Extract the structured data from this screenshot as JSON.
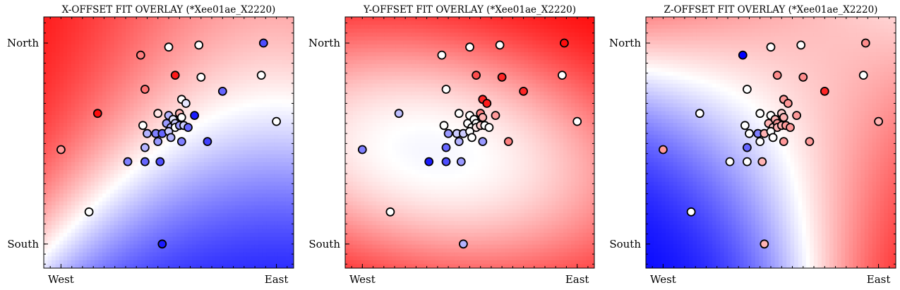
{
  "figure": {
    "panels": [
      {
        "title": "X-OFFSET FIT OVERLAY (*Xee01ae_X2220)"
      },
      {
        "title": "Y-OFFSET FIT OVERLAY (*Xee01ae_X2220)"
      },
      {
        "title": "Z-OFFSET FIT OVERLAY (*Xee01ae_X2220)"
      }
    ]
  },
  "colors": {
    "low": "#0000ff",
    "mid": "#ffffff",
    "high": "#ff0000",
    "marker_edge": "#000000"
  },
  "chart_data": [
    {
      "type": "scatter",
      "title": "X-OFFSET FIT OVERLAY (*Xee01ae_X2220)",
      "x_ticks": [
        {
          "value": 0,
          "label": "West"
        },
        {
          "value": 1,
          "label": "East"
        }
      ],
      "y_ticks": [
        {
          "value": 0,
          "label": "South"
        },
        {
          "value": 1,
          "label": "North"
        }
      ],
      "xlim": [
        -0.08,
        1.08
      ],
      "ylim": [
        -0.12,
        1.13
      ],
      "colormap": "bwr",
      "grid": false,
      "background_field": {
        "a": -0.9,
        "b": 1.2,
        "c": 0.0,
        "d": 0.9,
        "e": -0.5,
        "cx": 0.5,
        "cy": 0.5
      },
      "points": [
        {
          "x": 0.0,
          "y": 0.47,
          "v": 0.4
        },
        {
          "x": 0.17,
          "y": 0.65,
          "v": 0.95
        },
        {
          "x": 0.13,
          "y": 0.16,
          "v": 0.0
        },
        {
          "x": 0.37,
          "y": 0.94,
          "v": 0.5
        },
        {
          "x": 0.5,
          "y": 0.98,
          "v": 0.0
        },
        {
          "x": 0.64,
          "y": 0.99,
          "v": 0.0
        },
        {
          "x": 0.94,
          "y": 1.0,
          "v": -0.7
        },
        {
          "x": 0.53,
          "y": 0.84,
          "v": 0.9
        },
        {
          "x": 0.65,
          "y": 0.83,
          "v": 0.0
        },
        {
          "x": 0.93,
          "y": 0.84,
          "v": 0.0
        },
        {
          "x": 0.39,
          "y": 0.77,
          "v": 0.55
        },
        {
          "x": 0.75,
          "y": 0.76,
          "v": -0.6
        },
        {
          "x": 1.0,
          "y": 0.61,
          "v": 0.0
        },
        {
          "x": 0.56,
          "y": 0.72,
          "v": 0.0
        },
        {
          "x": 0.58,
          "y": 0.7,
          "v": -0.1
        },
        {
          "x": 0.62,
          "y": 0.64,
          "v": -0.9
        },
        {
          "x": 0.45,
          "y": 0.65,
          "v": 0.1
        },
        {
          "x": 0.5,
          "y": 0.64,
          "v": -0.3
        },
        {
          "x": 0.55,
          "y": 0.65,
          "v": 0.3
        },
        {
          "x": 0.38,
          "y": 0.59,
          "v": 0.0
        },
        {
          "x": 0.4,
          "y": 0.55,
          "v": -0.3
        },
        {
          "x": 0.44,
          "y": 0.55,
          "v": -0.5
        },
        {
          "x": 0.47,
          "y": 0.55,
          "v": -0.6
        },
        {
          "x": 0.49,
          "y": 0.6,
          "v": -0.4
        },
        {
          "x": 0.51,
          "y": 0.58,
          "v": -0.3
        },
        {
          "x": 0.52,
          "y": 0.62,
          "v": -0.1
        },
        {
          "x": 0.53,
          "y": 0.6,
          "v": -0.2
        },
        {
          "x": 0.53,
          "y": 0.58,
          "v": 0.0
        },
        {
          "x": 0.55,
          "y": 0.59,
          "v": -0.4
        },
        {
          "x": 0.57,
          "y": 0.59,
          "v": -0.2
        },
        {
          "x": 0.59,
          "y": 0.58,
          "v": -0.6
        },
        {
          "x": 0.56,
          "y": 0.63,
          "v": 0.0
        },
        {
          "x": 0.5,
          "y": 0.56,
          "v": -0.2
        },
        {
          "x": 0.51,
          "y": 0.53,
          "v": -0.3
        },
        {
          "x": 0.45,
          "y": 0.51,
          "v": -0.4
        },
        {
          "x": 0.39,
          "y": 0.48,
          "v": -0.3
        },
        {
          "x": 0.56,
          "y": 0.51,
          "v": -0.5
        },
        {
          "x": 0.68,
          "y": 0.51,
          "v": -0.75
        },
        {
          "x": 0.31,
          "y": 0.41,
          "v": -0.5
        },
        {
          "x": 0.39,
          "y": 0.41,
          "v": -0.6
        },
        {
          "x": 0.46,
          "y": 0.41,
          "v": -0.7
        },
        {
          "x": 0.47,
          "y": 0.0,
          "v": -0.9
        }
      ]
    },
    {
      "type": "scatter",
      "title": "Y-OFFSET FIT OVERLAY (*Xee01ae_X2220)",
      "x_ticks": [
        {
          "value": 0,
          "label": "West"
        },
        {
          "value": 1,
          "label": "East"
        }
      ],
      "y_ticks": [
        {
          "value": 0,
          "label": "South"
        },
        {
          "value": 1,
          "label": "North"
        }
      ],
      "xlim": [
        -0.08,
        1.08
      ],
      "ylim": [
        -0.12,
        1.13
      ],
      "colormap": "bwr",
      "grid": false,
      "background_field": {
        "a": 0.3,
        "b": 0.3,
        "c": 0.6,
        "d": 0.8,
        "e": 2.2,
        "cx": 0.5,
        "cy": 0.5
      },
      "points": [
        {
          "x": 0.0,
          "y": 0.47,
          "v": -0.5
        },
        {
          "x": 0.17,
          "y": 0.65,
          "v": -0.25
        },
        {
          "x": 0.13,
          "y": 0.16,
          "v": 0.0
        },
        {
          "x": 0.37,
          "y": 0.94,
          "v": 0.0
        },
        {
          "x": 0.5,
          "y": 0.98,
          "v": 0.0
        },
        {
          "x": 0.64,
          "y": 0.99,
          "v": 0.0
        },
        {
          "x": 0.94,
          "y": 1.0,
          "v": 0.95
        },
        {
          "x": 0.53,
          "y": 0.84,
          "v": 0.7
        },
        {
          "x": 0.65,
          "y": 0.83,
          "v": 0.85
        },
        {
          "x": 0.93,
          "y": 0.84,
          "v": 0.0
        },
        {
          "x": 0.39,
          "y": 0.77,
          "v": 0.0
        },
        {
          "x": 0.75,
          "y": 0.76,
          "v": 0.85
        },
        {
          "x": 1.0,
          "y": 0.61,
          "v": 0.0
        },
        {
          "x": 0.56,
          "y": 0.72,
          "v": 0.85
        },
        {
          "x": 0.58,
          "y": 0.7,
          "v": 0.9
        },
        {
          "x": 0.62,
          "y": 0.64,
          "v": 0.4
        },
        {
          "x": 0.45,
          "y": 0.65,
          "v": 0.0
        },
        {
          "x": 0.5,
          "y": 0.64,
          "v": 0.0
        },
        {
          "x": 0.55,
          "y": 0.65,
          "v": 0.5
        },
        {
          "x": 0.38,
          "y": 0.59,
          "v": 0.0
        },
        {
          "x": 0.4,
          "y": 0.55,
          "v": -0.4
        },
        {
          "x": 0.44,
          "y": 0.55,
          "v": -0.2
        },
        {
          "x": 0.47,
          "y": 0.55,
          "v": -0.2
        },
        {
          "x": 0.49,
          "y": 0.6,
          "v": 0.0
        },
        {
          "x": 0.51,
          "y": 0.58,
          "v": 0.0
        },
        {
          "x": 0.52,
          "y": 0.62,
          "v": 0.0
        },
        {
          "x": 0.53,
          "y": 0.6,
          "v": 0.0
        },
        {
          "x": 0.53,
          "y": 0.58,
          "v": 0.1
        },
        {
          "x": 0.55,
          "y": 0.59,
          "v": 0.2
        },
        {
          "x": 0.57,
          "y": 0.59,
          "v": 0.0
        },
        {
          "x": 0.59,
          "y": 0.58,
          "v": 0.0
        },
        {
          "x": 0.56,
          "y": 0.63,
          "v": 0.3
        },
        {
          "x": 0.5,
          "y": 0.56,
          "v": 0.0
        },
        {
          "x": 0.51,
          "y": 0.53,
          "v": 0.0
        },
        {
          "x": 0.45,
          "y": 0.51,
          "v": -0.3
        },
        {
          "x": 0.39,
          "y": 0.48,
          "v": -0.6
        },
        {
          "x": 0.56,
          "y": 0.51,
          "v": -0.4
        },
        {
          "x": 0.68,
          "y": 0.51,
          "v": 0.5
        },
        {
          "x": 0.31,
          "y": 0.41,
          "v": -0.9
        },
        {
          "x": 0.39,
          "y": 0.41,
          "v": -0.7
        },
        {
          "x": 0.46,
          "y": 0.41,
          "v": -0.4
        },
        {
          "x": 0.47,
          "y": 0.0,
          "v": -0.3
        }
      ]
    },
    {
      "type": "scatter",
      "title": "Z-OFFSET FIT OVERLAY (*Xee01ae_X2220)",
      "x_ticks": [
        {
          "value": 0,
          "label": "West"
        },
        {
          "value": 1,
          "label": "East"
        }
      ],
      "y_ticks": [
        {
          "value": 0,
          "label": "South"
        },
        {
          "value": 1,
          "label": "North"
        }
      ],
      "xlim": [
        -0.08,
        1.08
      ],
      "ylim": [
        -0.12,
        1.13
      ],
      "colormap": "bwr",
      "grid": false,
      "background_field": {
        "a": 1.1,
        "b": 0.5,
        "c": -2.2,
        "d": 0.0,
        "e": 0.0,
        "cx": 0.55,
        "cy": 0.5
      },
      "points": [
        {
          "x": 0.0,
          "y": 0.47,
          "v": 0.4
        },
        {
          "x": 0.17,
          "y": 0.65,
          "v": 0.0
        },
        {
          "x": 0.13,
          "y": 0.16,
          "v": 0.0
        },
        {
          "x": 0.37,
          "y": 0.94,
          "v": -1.0
        },
        {
          "x": 0.5,
          "y": 0.98,
          "v": 0.0
        },
        {
          "x": 0.64,
          "y": 0.99,
          "v": 0.0
        },
        {
          "x": 0.94,
          "y": 1.0,
          "v": 0.45
        },
        {
          "x": 0.53,
          "y": 0.84,
          "v": 0.45
        },
        {
          "x": 0.65,
          "y": 0.83,
          "v": 0.45
        },
        {
          "x": 0.93,
          "y": 0.84,
          "v": 0.0
        },
        {
          "x": 0.39,
          "y": 0.77,
          "v": 0.0
        },
        {
          "x": 0.75,
          "y": 0.76,
          "v": 0.85
        },
        {
          "x": 1.0,
          "y": 0.61,
          "v": 0.3
        },
        {
          "x": 0.56,
          "y": 0.72,
          "v": 0.4
        },
        {
          "x": 0.58,
          "y": 0.7,
          "v": 0.4
        },
        {
          "x": 0.62,
          "y": 0.64,
          "v": 0.4
        },
        {
          "x": 0.45,
          "y": 0.65,
          "v": 0.0
        },
        {
          "x": 0.5,
          "y": 0.64,
          "v": 0.0
        },
        {
          "x": 0.55,
          "y": 0.65,
          "v": 0.2
        },
        {
          "x": 0.38,
          "y": 0.59,
          "v": 0.0
        },
        {
          "x": 0.4,
          "y": 0.55,
          "v": 0.0
        },
        {
          "x": 0.44,
          "y": 0.55,
          "v": -0.5
        },
        {
          "x": 0.47,
          "y": 0.55,
          "v": 0.3
        },
        {
          "x": 0.49,
          "y": 0.6,
          "v": 0.3
        },
        {
          "x": 0.51,
          "y": 0.58,
          "v": 0.2
        },
        {
          "x": 0.52,
          "y": 0.62,
          "v": 0.3
        },
        {
          "x": 0.53,
          "y": 0.6,
          "v": 0.4
        },
        {
          "x": 0.53,
          "y": 0.58,
          "v": 0.3
        },
        {
          "x": 0.55,
          "y": 0.59,
          "v": 0.3
        },
        {
          "x": 0.57,
          "y": 0.59,
          "v": 0.4
        },
        {
          "x": 0.59,
          "y": 0.58,
          "v": 0.4
        },
        {
          "x": 0.56,
          "y": 0.63,
          "v": 0.3
        },
        {
          "x": 0.5,
          "y": 0.56,
          "v": 0.0
        },
        {
          "x": 0.51,
          "y": 0.53,
          "v": 0.0
        },
        {
          "x": 0.45,
          "y": 0.51,
          "v": 0.0
        },
        {
          "x": 0.39,
          "y": 0.48,
          "v": -0.6
        },
        {
          "x": 0.56,
          "y": 0.51,
          "v": 0.4
        },
        {
          "x": 0.68,
          "y": 0.51,
          "v": 0.4
        },
        {
          "x": 0.31,
          "y": 0.41,
          "v": 0.0
        },
        {
          "x": 0.39,
          "y": 0.41,
          "v": 0.0
        },
        {
          "x": 0.46,
          "y": 0.41,
          "v": 0.3
        },
        {
          "x": 0.47,
          "y": 0.0,
          "v": 0.3
        }
      ]
    }
  ]
}
